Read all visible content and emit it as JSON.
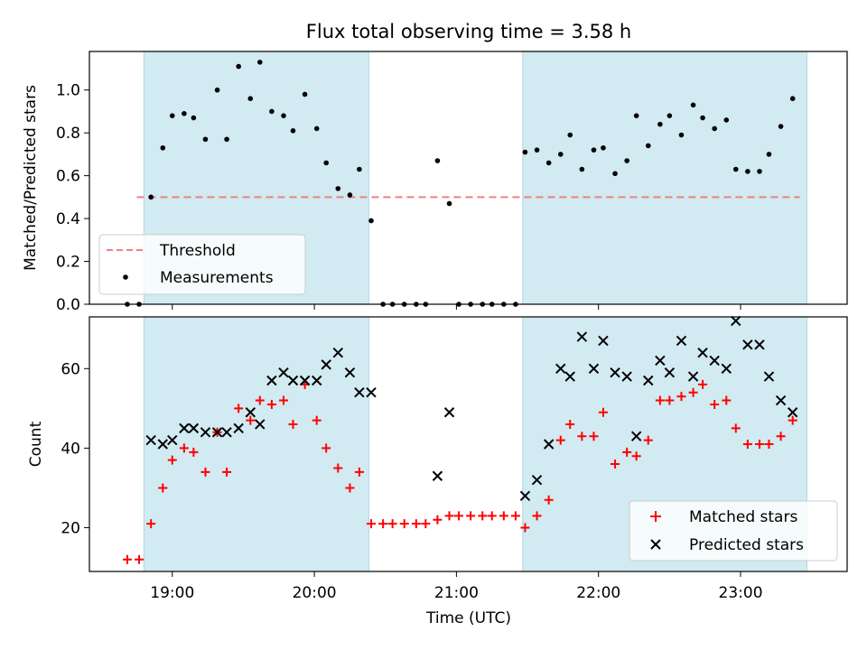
{
  "title": "Flux total observing time = 3.58 h",
  "chart_data": [
    {
      "panel": "top",
      "type": "scatter",
      "ylabel": "Matched/Predicted stars",
      "ylim": [
        0,
        1.18
      ],
      "yticks": [
        0.0,
        0.2,
        0.4,
        0.6,
        0.8,
        1.0
      ],
      "ytick_labels": [
        "0.0",
        "0.2",
        "0.4",
        "0.6",
        "0.8",
        "1.0"
      ],
      "threshold": {
        "label": "Threshold",
        "value": 0.5,
        "x_start": "18:45",
        "x_end": "23:25",
        "color": "#f08080"
      },
      "shaded_intervals": [
        [
          "18:48",
          "20:23"
        ],
        [
          "21:28",
          "23:28"
        ]
      ],
      "shade_color": "#add8e6",
      "legend": {
        "position": "lower-left",
        "entries": [
          "Threshold",
          "Measurements"
        ]
      },
      "series": [
        {
          "name": "Measurements",
          "color": "#000000",
          "points": [
            [
              "18:41",
              0.0
            ],
            [
              "18:46",
              0.0
            ],
            [
              "18:51",
              0.5
            ],
            [
              "18:56",
              0.73
            ],
            [
              "19:00",
              0.88
            ],
            [
              "19:05",
              0.89
            ],
            [
              "19:09",
              0.87
            ],
            [
              "19:14",
              0.77
            ],
            [
              "19:19",
              1.0
            ],
            [
              "19:23",
              0.77
            ],
            [
              "19:28",
              1.11
            ],
            [
              "19:33",
              0.96
            ],
            [
              "19:37",
              1.13
            ],
            [
              "19:42",
              0.9
            ],
            [
              "19:47",
              0.88
            ],
            [
              "19:51",
              0.81
            ],
            [
              "19:56",
              0.98
            ],
            [
              "20:01",
              0.82
            ],
            [
              "20:05",
              0.66
            ],
            [
              "20:10",
              0.54
            ],
            [
              "20:15",
              0.51
            ],
            [
              "20:19",
              0.63
            ],
            [
              "20:24",
              0.39
            ],
            [
              "20:29",
              0.0
            ],
            [
              "20:33",
              0.0
            ],
            [
              "20:38",
              0.0
            ],
            [
              "20:43",
              0.0
            ],
            [
              "20:47",
              0.0
            ],
            [
              "20:52",
              0.67
            ],
            [
              "20:57",
              0.47
            ],
            [
              "21:01",
              0.0
            ],
            [
              "21:06",
              0.0
            ],
            [
              "21:11",
              0.0
            ],
            [
              "21:15",
              0.0
            ],
            [
              "21:20",
              0.0
            ],
            [
              "21:25",
              0.0
            ],
            [
              "21:29",
              0.71
            ],
            [
              "21:34",
              0.72
            ],
            [
              "21:39",
              0.66
            ],
            [
              "21:44",
              0.7
            ],
            [
              "21:48",
              0.79
            ],
            [
              "21:53",
              0.63
            ],
            [
              "21:58",
              0.72
            ],
            [
              "22:02",
              0.73
            ],
            [
              "22:07",
              0.61
            ],
            [
              "22:12",
              0.67
            ],
            [
              "22:16",
              0.88
            ],
            [
              "22:21",
              0.74
            ],
            [
              "22:26",
              0.84
            ],
            [
              "22:30",
              0.88
            ],
            [
              "22:35",
              0.79
            ],
            [
              "22:40",
              0.93
            ],
            [
              "22:44",
              0.87
            ],
            [
              "22:49",
              0.82
            ],
            [
              "22:54",
              0.86
            ],
            [
              "22:58",
              0.63
            ],
            [
              "23:03",
              0.62
            ],
            [
              "23:08",
              0.62
            ],
            [
              "23:12",
              0.7
            ],
            [
              "23:17",
              0.83
            ],
            [
              "23:22",
              0.96
            ]
          ]
        }
      ]
    },
    {
      "panel": "bottom",
      "type": "scatter",
      "ylabel": "Count",
      "xlabel": "Time (UTC)",
      "ylim": [
        9,
        73
      ],
      "yticks": [
        20,
        40,
        60
      ],
      "ytick_labels": [
        "20",
        "40",
        "60"
      ],
      "xlim": [
        "18:25",
        "23:45"
      ],
      "xticks": [
        "19:00",
        "20:00",
        "21:00",
        "22:00",
        "23:00"
      ],
      "xtick_labels": [
        "19:00",
        "20:00",
        "21:00",
        "22:00",
        "23:00"
      ],
      "shaded_intervals": [
        [
          "18:48",
          "20:23"
        ],
        [
          "21:28",
          "23:28"
        ]
      ],
      "shade_color": "#add8e6",
      "legend": {
        "position": "lower-right",
        "entries": [
          "Matched stars",
          "Predicted stars"
        ]
      },
      "series": [
        {
          "name": "Matched stars",
          "marker": "plus",
          "color": "#ff0000",
          "points": [
            [
              "18:41",
              12
            ],
            [
              "18:46",
              12
            ],
            [
              "18:51",
              21
            ],
            [
              "18:56",
              30
            ],
            [
              "19:00",
              37
            ],
            [
              "19:05",
              40
            ],
            [
              "19:09",
              39
            ],
            [
              "19:14",
              34
            ],
            [
              "19:19",
              44
            ],
            [
              "19:23",
              34
            ],
            [
              "19:28",
              50
            ],
            [
              "19:33",
              47
            ],
            [
              "19:37",
              52
            ],
            [
              "19:42",
              51
            ],
            [
              "19:47",
              52
            ],
            [
              "19:51",
              46
            ],
            [
              "19:56",
              56
            ],
            [
              "20:01",
              47
            ],
            [
              "20:05",
              40
            ],
            [
              "20:10",
              35
            ],
            [
              "20:15",
              30
            ],
            [
              "20:19",
              34
            ],
            [
              "20:24",
              21
            ],
            [
              "20:29",
              21
            ],
            [
              "20:33",
              21
            ],
            [
              "20:38",
              21
            ],
            [
              "20:43",
              21
            ],
            [
              "20:47",
              21
            ],
            [
              "20:52",
              22
            ],
            [
              "20:57",
              23
            ],
            [
              "21:01",
              23
            ],
            [
              "21:06",
              23
            ],
            [
              "21:11",
              23
            ],
            [
              "21:15",
              23
            ],
            [
              "21:20",
              23
            ],
            [
              "21:25",
              23
            ],
            [
              "21:29",
              20
            ],
            [
              "21:34",
              23
            ],
            [
              "21:39",
              27
            ],
            [
              "21:44",
              42
            ],
            [
              "21:48",
              46
            ],
            [
              "21:53",
              43
            ],
            [
              "21:58",
              43
            ],
            [
              "22:02",
              49
            ],
            [
              "22:07",
              36
            ],
            [
              "22:12",
              39
            ],
            [
              "22:16",
              38
            ],
            [
              "22:21",
              42
            ],
            [
              "22:26",
              52
            ],
            [
              "22:30",
              52
            ],
            [
              "22:35",
              53
            ],
            [
              "22:40",
              54
            ],
            [
              "22:44",
              56
            ],
            [
              "22:49",
              51
            ],
            [
              "22:54",
              52
            ],
            [
              "22:58",
              45
            ],
            [
              "23:03",
              41
            ],
            [
              "23:08",
              41
            ],
            [
              "23:12",
              41
            ],
            [
              "23:17",
              43
            ],
            [
              "23:22",
              47
            ]
          ]
        },
        {
          "name": "Predicted stars",
          "marker": "x",
          "color": "#000000",
          "points": [
            [
              "18:51",
              42
            ],
            [
              "18:56",
              41
            ],
            [
              "19:00",
              42
            ],
            [
              "19:05",
              45
            ],
            [
              "19:09",
              45
            ],
            [
              "19:14",
              44
            ],
            [
              "19:19",
              44
            ],
            [
              "19:23",
              44
            ],
            [
              "19:28",
              45
            ],
            [
              "19:33",
              49
            ],
            [
              "19:37",
              46
            ],
            [
              "19:42",
              57
            ],
            [
              "19:47",
              59
            ],
            [
              "19:51",
              57
            ],
            [
              "19:56",
              57
            ],
            [
              "20:01",
              57
            ],
            [
              "20:05",
              61
            ],
            [
              "20:10",
              64
            ],
            [
              "20:15",
              59
            ],
            [
              "20:19",
              54
            ],
            [
              "20:24",
              54
            ],
            [
              "20:52",
              33
            ],
            [
              "20:57",
              49
            ],
            [
              "21:29",
              28
            ],
            [
              "21:34",
              32
            ],
            [
              "21:39",
              41
            ],
            [
              "21:44",
              60
            ],
            [
              "21:48",
              58
            ],
            [
              "21:53",
              68
            ],
            [
              "21:58",
              60
            ],
            [
              "22:02",
              67
            ],
            [
              "22:07",
              59
            ],
            [
              "22:12",
              58
            ],
            [
              "22:16",
              43
            ],
            [
              "22:21",
              57
            ],
            [
              "22:26",
              62
            ],
            [
              "22:30",
              59
            ],
            [
              "22:35",
              67
            ],
            [
              "22:40",
              58
            ],
            [
              "22:44",
              64
            ],
            [
              "22:49",
              62
            ],
            [
              "22:54",
              60
            ],
            [
              "22:58",
              72
            ],
            [
              "23:03",
              66
            ],
            [
              "23:08",
              66
            ],
            [
              "23:12",
              58
            ],
            [
              "23:17",
              52
            ],
            [
              "23:22",
              49
            ]
          ]
        }
      ]
    }
  ]
}
